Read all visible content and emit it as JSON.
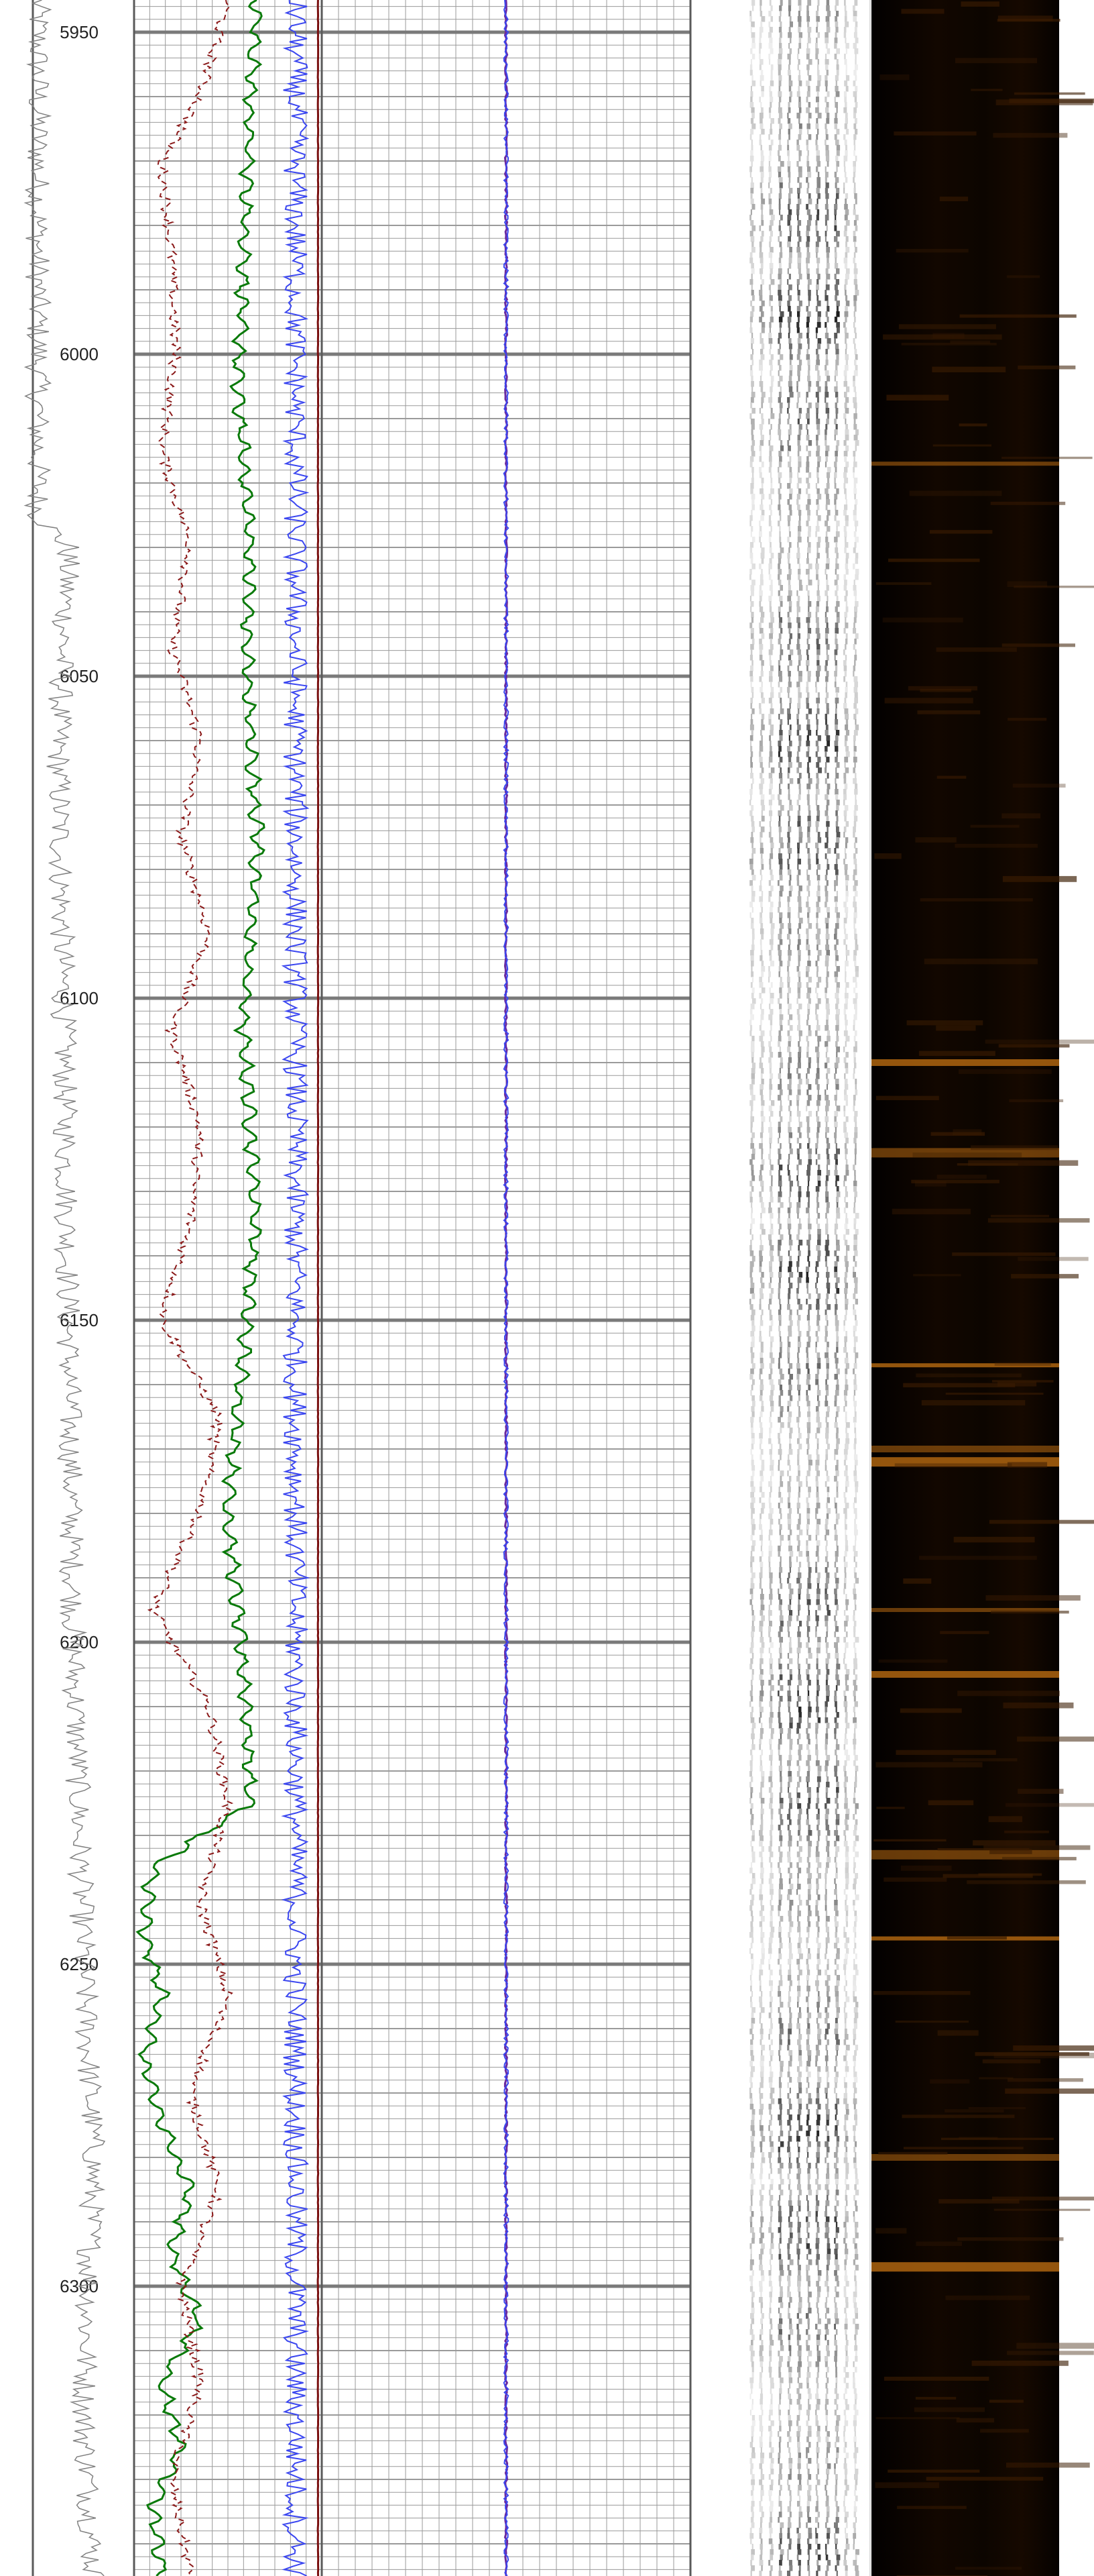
{
  "chart_data": {
    "type": "line",
    "title": "",
    "xlabel": "",
    "ylabel": "",
    "depth_axis": {
      "ticks": [
        5950,
        6000,
        6050,
        6100,
        6150,
        6200,
        6250,
        6300
      ],
      "range": [
        5945,
        6345
      ],
      "major_step": 50,
      "minor_step": 10,
      "fine_step": 2
    },
    "grid": true,
    "tracks": [
      {
        "id": "depth-track",
        "curves": [
          {
            "style": "thin gray wiggle",
            "color": "#808080",
            "depth": [
              5945,
              6025,
              6030,
              6060,
              6100,
              6150,
              6200,
              6250,
              6280,
              6300,
              6320,
              6345
            ],
            "value": [
              0.05,
              0.05,
              0.35,
              0.25,
              0.3,
              0.35,
              0.4,
              0.5,
              0.6,
              0.55,
              0.5,
              0.6
            ]
          }
        ]
      },
      {
        "id": "main-log-track",
        "curves": [
          {
            "style": "solid green",
            "color": "#0a7a0a",
            "depth": [
              5945,
              5960,
              5975,
              5990,
              6005,
              6015,
              6030,
              6045,
              6060,
              6075,
              6090,
              6105,
              6120,
              6135,
              6150,
              6165,
              6180,
              6195,
              6210,
              6225,
              6235,
              6245,
              6255,
              6265,
              6275,
              6285,
              6295,
              6305,
              6315,
              6325,
              6335,
              6345
            ],
            "value": [
              0.66,
              0.62,
              0.6,
              0.58,
              0.55,
              0.58,
              0.62,
              0.6,
              0.62,
              0.66,
              0.62,
              0.58,
              0.62,
              0.65,
              0.6,
              0.55,
              0.5,
              0.55,
              0.6,
              0.62,
              0.1,
              0.05,
              0.15,
              0.05,
              0.15,
              0.3,
              0.2,
              0.35,
              0.15,
              0.25,
              0.1,
              0.15
            ]
          },
          {
            "style": "dashed dark red",
            "color": "#8b1a1a",
            "depth": [
              5945,
              5960,
              5970,
              5985,
              6000,
              6015,
              6030,
              6045,
              6060,
              6075,
              6090,
              6105,
              6120,
              6135,
              6150,
              6165,
              6180,
              6195,
              6210,
              6225,
              6240,
              6255,
              6270,
              6285,
              6300,
              6315,
              6330,
              6345
            ],
            "value": [
              0.5,
              0.35,
              0.15,
              0.2,
              0.22,
              0.15,
              0.3,
              0.2,
              0.35,
              0.25,
              0.4,
              0.2,
              0.35,
              0.3,
              0.15,
              0.45,
              0.35,
              0.1,
              0.4,
              0.5,
              0.35,
              0.5,
              0.3,
              0.45,
              0.25,
              0.35,
              0.2,
              0.3
            ]
          },
          {
            "style": "noisy blue",
            "color": "#3a46f0",
            "depth": [
              5945,
              6345
            ],
            "value": [
              0.86,
              0.86
            ]
          },
          {
            "style": "solid brown vertical",
            "color": "#7a1010",
            "depth": [
              5945,
              6345
            ],
            "value": [
              0.98,
              0.98
            ]
          }
        ]
      },
      {
        "id": "second-log-track",
        "curves": [
          {
            "style": "purple baseline",
            "color": "#6a2aa0",
            "depth": [
              5945,
              6345
            ],
            "value": [
              0.5,
              0.5
            ]
          },
          {
            "style": "noisy blue",
            "color": "#3a46f0",
            "depth": [
              5945,
              6345
            ],
            "value": [
              0.5,
              0.5
            ]
          }
        ]
      }
    ],
    "image_tracks": [
      {
        "id": "acoustic-image",
        "palette": "grayscale"
      },
      {
        "id": "resistivity-image",
        "palette": "black-orange"
      }
    ]
  },
  "colors": {
    "grid_minor": "#9a9a9a",
    "grid_major": "#7a7a7a",
    "border": "#5a5a5a",
    "image_dark": "#040100",
    "image_bright": "#b86a10"
  }
}
